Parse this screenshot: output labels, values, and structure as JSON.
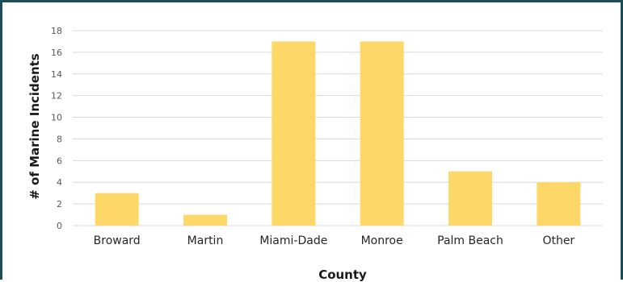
{
  "chart_data": {
    "type": "bar",
    "categories": [
      "Broward",
      "Martin",
      "Miami-Dade",
      "Monroe",
      "Palm Beach",
      "Other"
    ],
    "values": [
      3,
      1,
      17,
      17,
      5,
      4
    ],
    "title": "",
    "xlabel": "County",
    "ylabel": "# of Marine Incidents",
    "ylim": [
      0,
      18
    ],
    "yticks": [
      0,
      2,
      4,
      6,
      8,
      10,
      12,
      14,
      16,
      18
    ],
    "grid": true,
    "legend": "none",
    "bar_color": "#fdd868",
    "border_color": "#1b4d55"
  }
}
